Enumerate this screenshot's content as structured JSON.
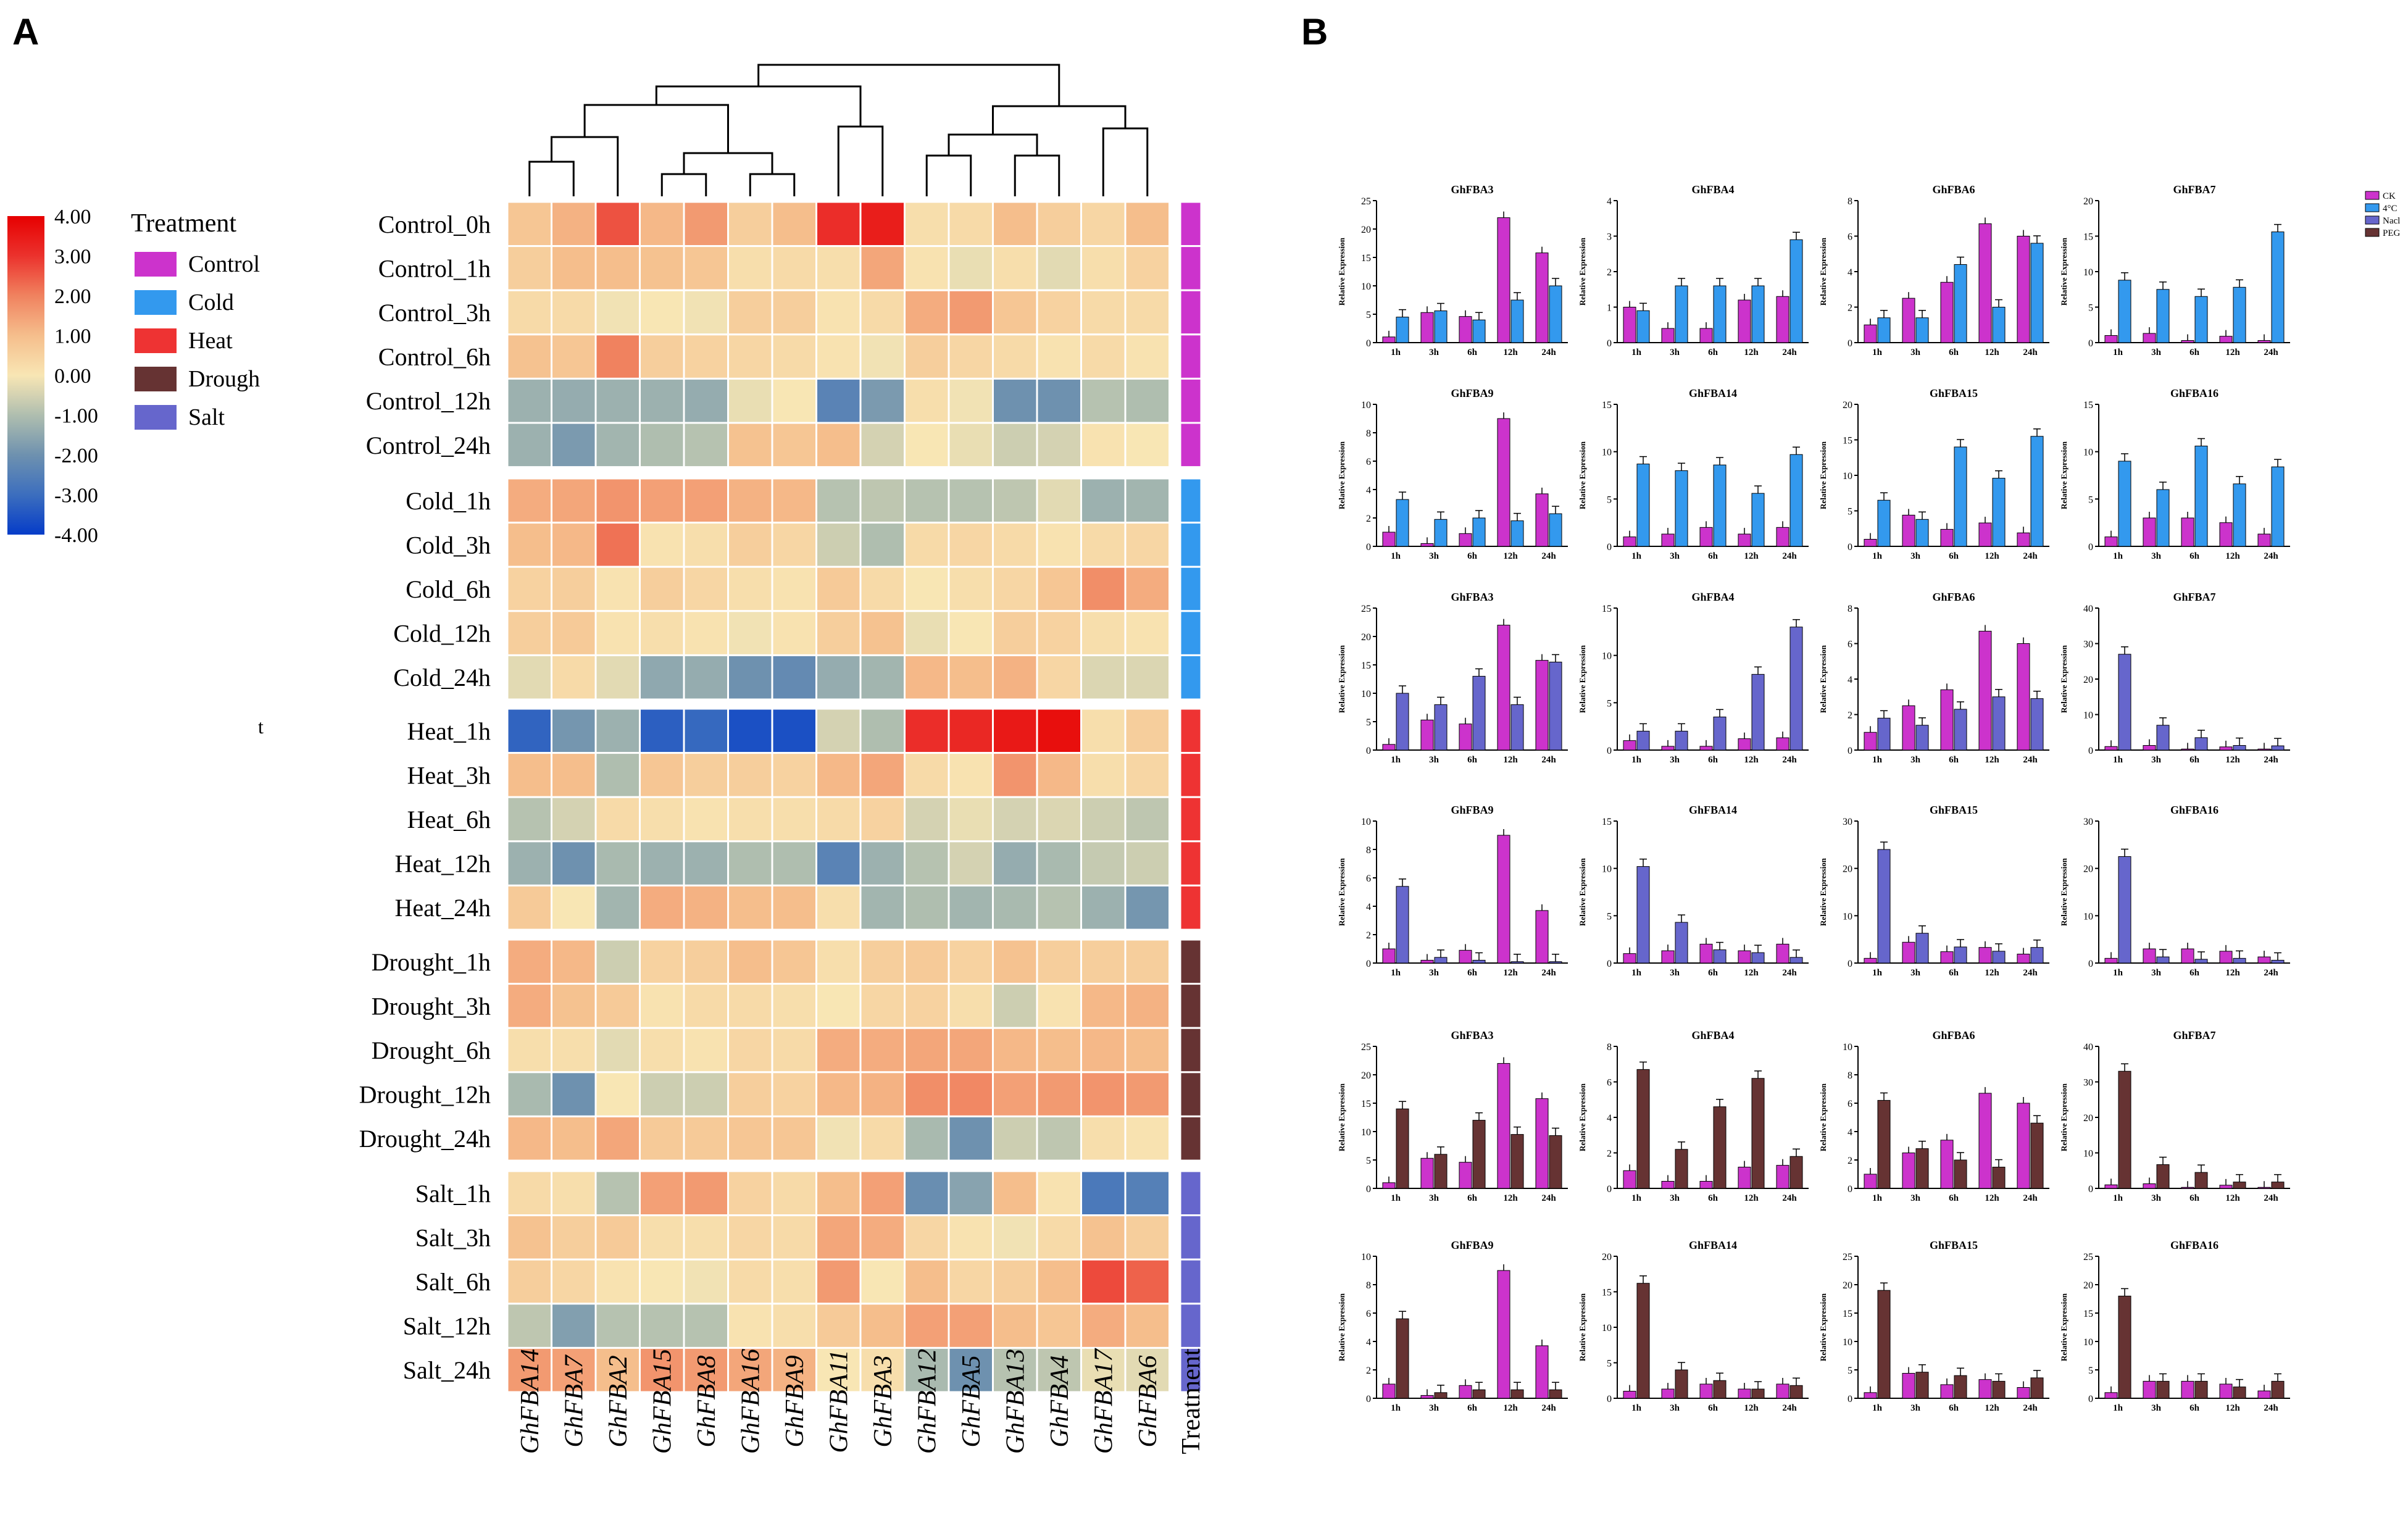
{
  "panel_a_label": "A",
  "panel_b_label": "B",
  "stray_text": "t",
  "chart_data": [
    {
      "type": "heatmap",
      "title": "",
      "genes": [
        "GhFBA14",
        "GhFBA7",
        "GhFBA2",
        "GhFBA15",
        "GhFBA8",
        "GhFBA16",
        "GhFBA9",
        "GhFBA11",
        "GhFBA3",
        "GhFBA12",
        "GhFBA5",
        "GhFBA13",
        "GhFBA4",
        "GhFBA17",
        "GhFBA6"
      ],
      "treatment_column_label": "Treatment",
      "color_scale": {
        "min": -4.0,
        "max": 4.0,
        "ticks": [
          "4.00",
          "3.00",
          "2.00",
          "1.00",
          "0.00",
          "-1.00",
          "-2.00",
          "-3.00",
          "-4.00"
        ]
      },
      "legend_title": "Treatment",
      "treatments": [
        {
          "name": "Control",
          "color": "#cc33cc"
        },
        {
          "name": "Cold",
          "color": "#3399ee"
        },
        {
          "name": "Heat",
          "color": "#ee3333"
        },
        {
          "name": "Drough",
          "color": "#663333"
        },
        {
          "name": "Salt",
          "color": "#6666cc"
        }
      ],
      "row_groups": [
        {
          "treatment": 0,
          "rows": [
            {
              "label": "Control_0h",
              "values": [
                0.8,
                1.2,
                2.6,
                1.1,
                1.6,
                0.6,
                1.0,
                3.1,
                3.4,
                0.2,
                0.3,
                1.0,
                0.6,
                0.4,
                1.0
              ]
            },
            {
              "label": "Control_1h",
              "values": [
                0.6,
                1.0,
                1.0,
                0.9,
                0.8,
                0.2,
                0.3,
                0.2,
                1.4,
                0.1,
                -0.2,
                0.2,
                -0.3,
                0.2,
                0.5
              ]
            },
            {
              "label": "Control_3h",
              "values": [
                0.3,
                0.3,
                -0.1,
                0.0,
                -0.1,
                0.6,
                0.6,
                0.1,
                0.3,
                1.3,
                1.6,
                0.8,
                0.5,
                0.3,
                0.3
              ]
            },
            {
              "label": "Control_6h",
              "values": [
                0.9,
                0.8,
                2.0,
                0.6,
                0.5,
                0.4,
                0.3,
                0.1,
                -0.1,
                0.6,
                0.4,
                0.3,
                0.1,
                0.3,
                0.1
              ]
            },
            {
              "label": "Control_12h",
              "values": [
                -1.3,
                -1.4,
                -1.3,
                -1.3,
                -1.4,
                -0.2,
                0.0,
                -2.4,
                -1.8,
                0.2,
                -0.1,
                -2.0,
                -2.0,
                -0.9,
                -1.0
              ]
            },
            {
              "label": "Control_24h",
              "values": [
                -1.3,
                -1.8,
                -1.2,
                -1.0,
                -0.9,
                0.9,
                0.8,
                1.0,
                -0.5,
                0.0,
                -0.2,
                -0.6,
                -0.5,
                0.1,
                0.0
              ]
            }
          ]
        },
        {
          "treatment": 1,
          "rows": [
            {
              "label": "Cold_1h",
              "values": [
                1.3,
                1.4,
                1.7,
                1.5,
                1.5,
                1.2,
                1.1,
                -0.9,
                -0.8,
                -0.9,
                -0.9,
                -0.8,
                -0.3,
                -1.3,
                -1.2
              ]
            },
            {
              "label": "Cold_3h",
              "values": [
                1.0,
                1.1,
                2.2,
                0.1,
                0.2,
                0.6,
                0.4,
                -0.6,
                -1.0,
                0.3,
                0.4,
                0.3,
                0.1,
                0.3,
                0.4
              ]
            },
            {
              "label": "Cold_6h",
              "values": [
                0.5,
                0.6,
                0.1,
                0.6,
                0.4,
                0.2,
                0.1,
                0.7,
                0.3,
                0.0,
                0.2,
                0.4,
                0.8,
                1.8,
                1.3
              ]
            },
            {
              "label": "Cold_12h",
              "values": [
                0.6,
                0.7,
                0.1,
                0.2,
                0.1,
                -0.1,
                0.1,
                0.6,
                0.9,
                -0.2,
                0.0,
                0.6,
                0.5,
                0.2,
                0.1
              ]
            },
            {
              "label": "Cold_24h",
              "values": [
                -0.3,
                0.3,
                -0.3,
                -1.5,
                -1.4,
                -2.0,
                -2.2,
                -1.4,
                -1.2,
                1.1,
                1.0,
                1.2,
                0.4,
                -0.4,
                -0.4
              ]
            }
          ]
        },
        {
          "treatment": 2,
          "rows": [
            {
              "label": "Heat_1h",
              "values": [
                -3.2,
                -1.9,
                -1.3,
                -3.3,
                -3.1,
                -3.6,
                -3.6,
                -0.5,
                -1.0,
                3.1,
                3.2,
                3.5,
                3.7,
                0.2,
                0.6
              ]
            },
            {
              "label": "Heat_3h",
              "values": [
                1.0,
                1.0,
                -1.0,
                0.8,
                0.6,
                0.6,
                0.5,
                1.1,
                1.4,
                0.3,
                0.1,
                1.7,
                1.1,
                0.2,
                0.4
              ]
            },
            {
              "label": "Heat_6h",
              "values": [
                -0.9,
                -0.5,
                0.3,
                0.2,
                0.1,
                0.2,
                0.2,
                0.3,
                0.5,
                -0.5,
                -0.2,
                -0.5,
                -0.4,
                -0.6,
                -0.8
              ]
            },
            {
              "label": "Heat_12h",
              "values": [
                -1.3,
                -2.0,
                -1.1,
                -1.3,
                -1.3,
                -1.0,
                -1.0,
                -2.4,
                -1.3,
                -0.9,
                -0.5,
                -1.4,
                -1.1,
                -0.7,
                -0.6
              ]
            },
            {
              "label": "Heat_24h",
              "values": [
                0.7,
                0.0,
                -1.2,
                1.3,
                1.2,
                1.0,
                1.0,
                0.2,
                -1.2,
                -1.0,
                -1.2,
                -1.1,
                -0.9,
                -1.3,
                -1.9
              ]
            }
          ]
        },
        {
          "treatment": 3,
          "rows": [
            {
              "label": "Drought_1h",
              "values": [
                1.3,
                1.1,
                -0.6,
                0.5,
                0.6,
                1.0,
                0.8,
                0.2,
                0.6,
                0.7,
                0.5,
                0.9,
                0.6,
                0.6,
                0.6
              ]
            },
            {
              "label": "Drought_3h",
              "values": [
                1.3,
                0.9,
                0.7,
                0.1,
                0.3,
                0.3,
                0.2,
                0.0,
                0.4,
                0.5,
                0.2,
                -0.6,
                0.1,
                1.1,
                1.2
              ]
            },
            {
              "label": "Drought_6h",
              "values": [
                0.2,
                0.2,
                -0.3,
                0.2,
                0.1,
                0.4,
                0.3,
                1.3,
                1.3,
                1.4,
                1.4,
                1.1,
                1.0,
                1.1,
                1.0
              ]
            },
            {
              "label": "Drought_12h",
              "values": [
                -1.1,
                -2.0,
                0.0,
                -0.6,
                -0.6,
                0.6,
                0.5,
                1.1,
                1.2,
                1.8,
                1.9,
                1.5,
                1.6,
                1.7,
                1.6
              ]
            },
            {
              "label": "Drought_24h",
              "values": [
                1.1,
                1.0,
                1.4,
                0.7,
                0.7,
                0.8,
                0.8,
                -0.1,
                0.3,
                -1.1,
                -2.0,
                -0.6,
                -0.8,
                0.2,
                0.1
              ]
            }
          ]
        },
        {
          "treatment": 4,
          "rows": [
            {
              "label": "Salt_1h",
              "values": [
                0.3,
                0.2,
                -0.9,
                1.5,
                1.6,
                0.5,
                0.3,
                1.0,
                1.5,
                -2.1,
                -1.6,
                1.0,
                0.1,
                -2.7,
                -2.5
              ]
            },
            {
              "label": "Salt_3h",
              "values": [
                0.9,
                0.6,
                0.7,
                0.2,
                0.2,
                0.4,
                0.3,
                1.4,
                1.3,
                0.4,
                0.1,
                -0.1,
                0.3,
                0.9,
                0.6
              ]
            },
            {
              "label": "Salt_6h",
              "values": [
                0.6,
                0.4,
                0.1,
                0.0,
                -0.1,
                0.3,
                0.2,
                1.6,
                0.0,
                1.0,
                0.4,
                0.6,
                1.0,
                2.7,
                2.4
              ]
            },
            {
              "label": "Salt_12h",
              "values": [
                -0.8,
                -1.7,
                -0.9,
                -0.9,
                -0.9,
                0.1,
                0.2,
                0.7,
                1.0,
                1.5,
                1.5,
                1.0,
                0.8,
                1.3,
                1.0
              ]
            },
            {
              "label": "Salt_24h",
              "values": [
                1.6,
                1.5,
                1.0,
                1.7,
                1.6,
                1.4,
                1.2,
                0.0,
                0.2,
                -1.1,
                -2.0,
                -0.9,
                -0.8,
                -0.2,
                -0.3
              ]
            }
          ]
        }
      ]
    },
    {
      "type": "bar",
      "panel": "B",
      "ylabel": "Relative Expression",
      "categories": [
        "1h",
        "3h",
        "6h",
        "12h",
        "24h"
      ],
      "legend": [
        {
          "name": "CK",
          "color": "#cc33cc"
        },
        {
          "name": "4°C",
          "color": "#3399ee"
        },
        {
          "name": "Nacl",
          "color": "#6666cc"
        },
        {
          "name": "PEG",
          "color": "#663333"
        }
      ],
      "genes": [
        "GhFBA3",
        "GhFBA4",
        "GhFBA6",
        "GhFBA7",
        "GhFBA9",
        "GhFBA14",
        "GhFBA15",
        "GhFBA16"
      ],
      "ck": {
        "GhFBA3": [
          1.0,
          5.3,
          4.6,
          22.0,
          15.8
        ],
        "GhFBA4": [
          1.0,
          0.4,
          0.4,
          1.2,
          1.3
        ],
        "GhFBA6": [
          1.0,
          2.5,
          3.4,
          6.7,
          6.0
        ],
        "GhFBA7": [
          1.0,
          1.3,
          0.3,
          0.9,
          0.3
        ],
        "GhFBA9": [
          1.0,
          0.2,
          0.9,
          9.0,
          3.7
        ],
        "GhFBA14": [
          1.0,
          1.3,
          2.0,
          1.3,
          2.0
        ],
        "GhFBA15": [
          1.0,
          4.4,
          2.4,
          3.3,
          1.9
        ],
        "GhFBA16": [
          1.0,
          3.0,
          3.0,
          2.5,
          1.3
        ]
      },
      "sections": [
        {
          "treatment": "4°C",
          "color": "#3399ee",
          "ylim": {
            "GhFBA3": [
              0,
              25
            ],
            "GhFBA4": [
              0,
              4
            ],
            "GhFBA6": [
              0,
              8
            ],
            "GhFBA7": [
              0,
              20
            ],
            "GhFBA9": [
              0,
              10
            ],
            "GhFBA14": [
              0,
              15
            ],
            "GhFBA15": [
              0,
              20
            ],
            "GhFBA16": [
              0,
              15
            ]
          },
          "values": {
            "GhFBA3": [
              4.5,
              5.6,
              4.0,
              7.5,
              10.0
            ],
            "GhFBA4": [
              0.9,
              1.6,
              1.6,
              1.6,
              2.9
            ],
            "GhFBA6": [
              1.4,
              1.4,
              4.4,
              2.0,
              5.6
            ],
            "GhFBA7": [
              8.8,
              7.5,
              6.5,
              7.8,
              15.6
            ],
            "GhFBA9": [
              3.3,
              1.9,
              2.0,
              1.8,
              2.3
            ],
            "GhFBA14": [
              8.7,
              8.0,
              8.6,
              5.6,
              9.7
            ],
            "GhFBA15": [
              6.5,
              3.8,
              14.0,
              9.6,
              15.5
            ],
            "GhFBA16": [
              9.0,
              6.0,
              10.6,
              6.6,
              8.4
            ]
          }
        },
        {
          "treatment": "Nacl",
          "color": "#6666cc",
          "ylim": {
            "GhFBA3": [
              0,
              25
            ],
            "GhFBA4": [
              0,
              15
            ],
            "GhFBA6": [
              0,
              8
            ],
            "GhFBA7": [
              0,
              40
            ],
            "GhFBA9": [
              0,
              10
            ],
            "GhFBA14": [
              0,
              15
            ],
            "GhFBA15": [
              0,
              30
            ],
            "GhFBA16": [
              0,
              30
            ]
          },
          "values": {
            "GhFBA3": [
              10.0,
              8.0,
              13.0,
              8.0,
              15.5
            ],
            "GhFBA4": [
              2.0,
              2.0,
              3.5,
              8.0,
              13.0
            ],
            "GhFBA6": [
              1.8,
              1.4,
              2.3,
              3.0,
              2.9
            ],
            "GhFBA7": [
              27.0,
              7.0,
              3.5,
              1.3,
              1.2
            ],
            "GhFBA9": [
              5.4,
              0.4,
              0.2,
              0.1,
              0.1
            ],
            "GhFBA14": [
              10.2,
              4.3,
              1.4,
              1.1,
              0.6
            ],
            "GhFBA15": [
              24.0,
              6.3,
              3.4,
              2.5,
              3.3
            ],
            "GhFBA16": [
              22.5,
              1.3,
              0.8,
              1.0,
              0.6
            ]
          }
        },
        {
          "treatment": "PEG",
          "color": "#663333",
          "ylim": {
            "GhFBA3": [
              0,
              25
            ],
            "GhFBA4": [
              0,
              8
            ],
            "GhFBA6": [
              0,
              10
            ],
            "GhFBA7": [
              0,
              40
            ],
            "GhFBA9": [
              0,
              10
            ],
            "GhFBA14": [
              0,
              20
            ],
            "GhFBA15": [
              0,
              25
            ],
            "GhFBA16": [
              0,
              25
            ]
          },
          "values": {
            "GhFBA3": [
              14.0,
              6.0,
              12.0,
              9.5,
              9.3
            ],
            "GhFBA4": [
              6.7,
              2.2,
              4.6,
              6.2,
              1.8
            ],
            "GhFBA6": [
              6.2,
              2.8,
              2.0,
              1.5,
              4.6
            ],
            "GhFBA7": [
              33.0,
              6.7,
              4.5,
              1.8,
              1.8
            ],
            "GhFBA9": [
              5.6,
              0.4,
              0.6,
              0.6,
              0.6
            ],
            "GhFBA14": [
              16.2,
              4.0,
              2.5,
              1.3,
              1.8
            ],
            "GhFBA15": [
              19.0,
              4.6,
              4.0,
              3.0,
              3.6
            ],
            "GhFBA16": [
              18.0,
              3.0,
              3.0,
              2.0,
              3.0
            ]
          }
        }
      ]
    }
  ]
}
